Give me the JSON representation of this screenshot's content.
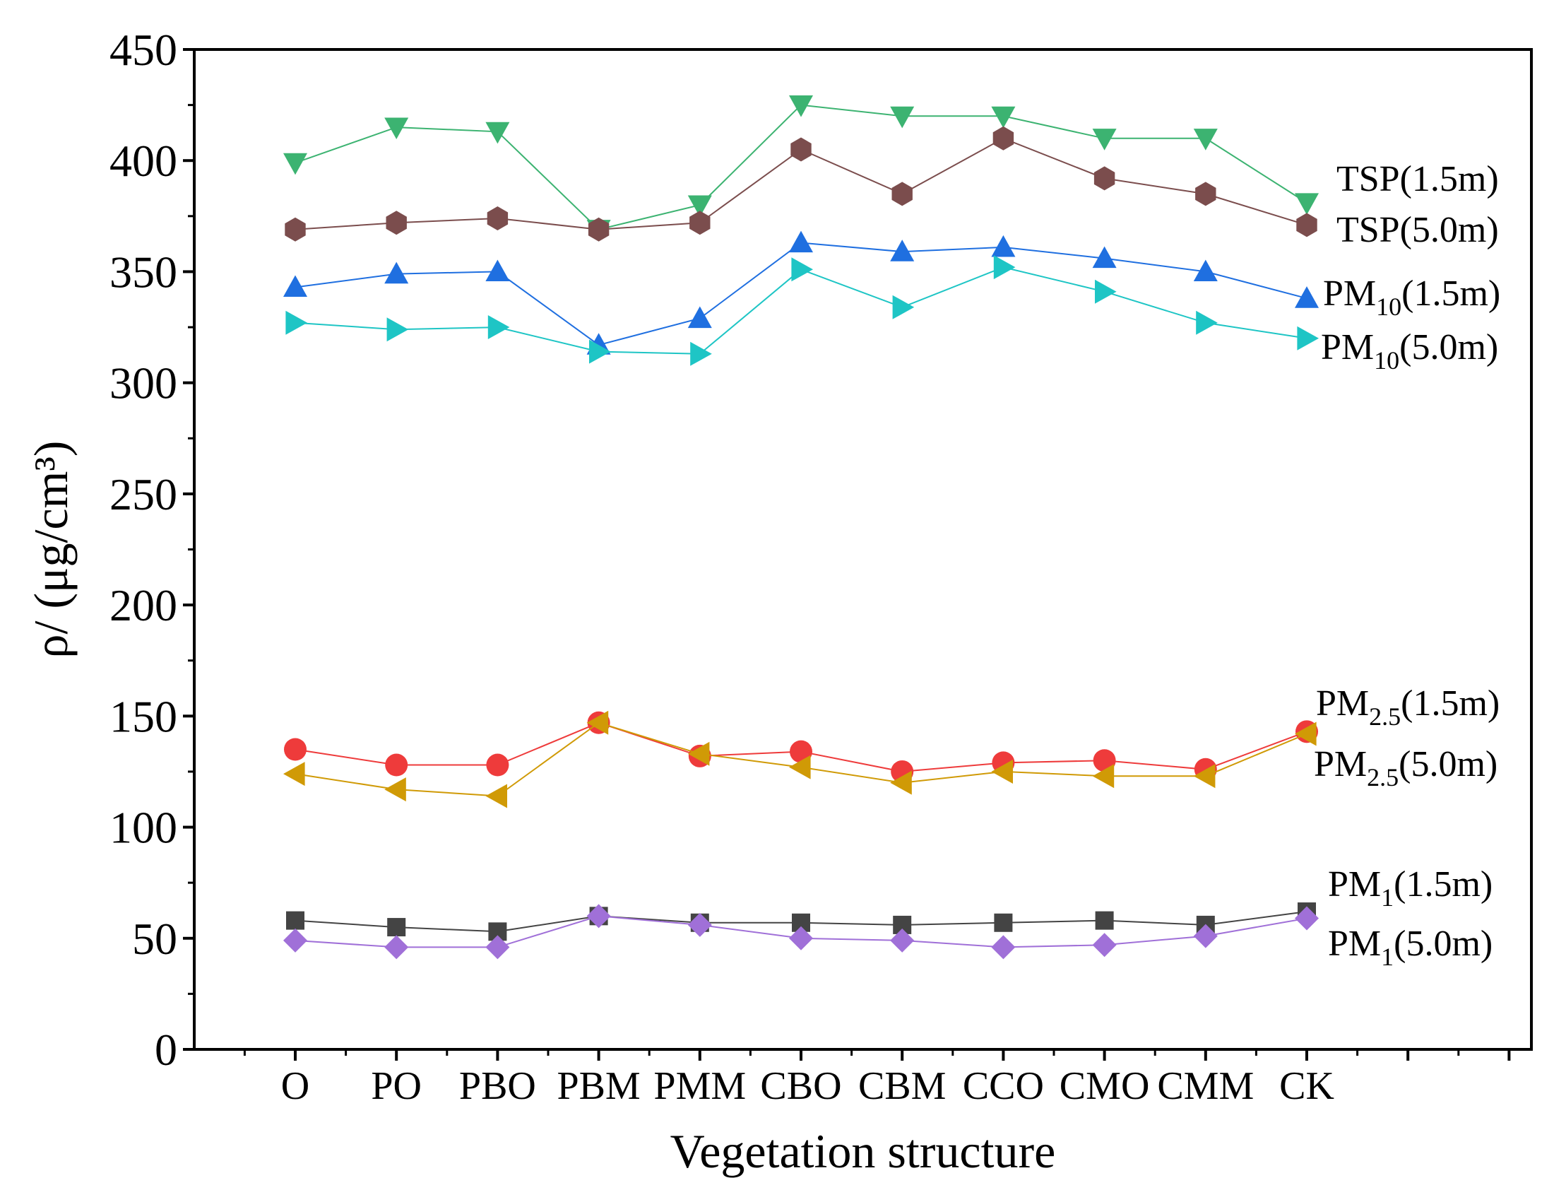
{
  "chart_data": {
    "type": "line",
    "title": "",
    "xlabel": "Vegetation structure",
    "ylabel": "ρ/ (μg/cm³)",
    "ylim": [
      0,
      450
    ],
    "yticks": [
      0,
      50,
      100,
      150,
      200,
      250,
      300,
      350,
      400,
      450
    ],
    "categories": [
      "O",
      "PO",
      "PBO",
      "PBM",
      "PMM",
      "CBO",
      "CBM",
      "CCO",
      "CMO",
      "CMM",
      "CK"
    ],
    "x_extent_categories": 13,
    "grid": false,
    "series": [
      {
        "name": "TSP(1.5m)",
        "label_main": "TSP(1.5m)",
        "label_base": "",
        "label_sub": "",
        "label_suffix": "",
        "color": "#3cb371",
        "marker": "triangle-down",
        "values": [
          399,
          415,
          413,
          369,
          380,
          425,
          420,
          420,
          410,
          410,
          381
        ]
      },
      {
        "name": "TSP(5.0m)",
        "label_main": "TSP(5.0m)",
        "label_base": "",
        "label_sub": "",
        "label_suffix": "",
        "color": "#7b4d4d",
        "marker": "hexagon",
        "values": [
          369,
          372,
          374,
          369,
          372,
          405,
          385,
          410,
          392,
          385,
          371
        ]
      },
      {
        "name": "PM10(1.5m)",
        "label_main": "",
        "label_base": "PM",
        "label_sub": "10",
        "label_suffix": "(1.5m)",
        "color": "#1f6fe0",
        "marker": "triangle-up",
        "values": [
          343,
          349,
          350,
          317,
          329,
          363,
          359,
          361,
          356,
          350,
          338
        ]
      },
      {
        "name": "PM10(5.0m)",
        "label_main": "",
        "label_base": "PM",
        "label_sub": "10",
        "label_suffix": "(5.0m)",
        "color": "#1ec5c5",
        "marker": "triangle-right",
        "values": [
          327,
          324,
          325,
          314,
          313,
          351,
          334,
          352,
          341,
          327,
          320
        ]
      },
      {
        "name": "PM2.5(1.5m)",
        "label_main": "",
        "label_base": "PM",
        "label_sub": "2.5",
        "label_suffix": "(1.5m)",
        "color": "#ee3b3b",
        "marker": "circle",
        "values": [
          135,
          128,
          128,
          147,
          132,
          134,
          125,
          129,
          130,
          126,
          143
        ]
      },
      {
        "name": "PM2.5(5.0m)",
        "label_main": "",
        "label_base": "PM",
        "label_sub": "2.5",
        "label_suffix": "(5.0m)",
        "color": "#d09a06",
        "marker": "triangle-left",
        "values": [
          124,
          117,
          114,
          147,
          133,
          127,
          120,
          125,
          123,
          123,
          142
        ]
      },
      {
        "name": "PM1(1.5m)",
        "label_main": "",
        "label_base": "PM",
        "label_sub": "1",
        "label_suffix": "(1.5m)",
        "color": "#444444",
        "marker": "square",
        "values": [
          58,
          55,
          53,
          60,
          57,
          57,
          56,
          57,
          58,
          56,
          62
        ]
      },
      {
        "name": "PM1(5.0m)",
        "label_main": "",
        "label_base": "PM",
        "label_sub": "1",
        "label_suffix": "(5.0m)",
        "color": "#a070d8",
        "marker": "diamond",
        "values": [
          49,
          46,
          46,
          60,
          56,
          50,
          49,
          46,
          47,
          51,
          59
        ]
      }
    ]
  }
}
